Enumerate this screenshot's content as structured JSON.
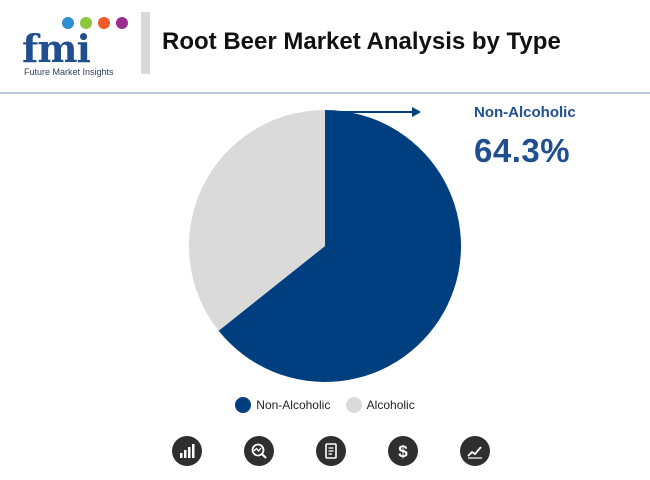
{
  "header": {
    "logo_text": "fmi",
    "logo_subtitle": "Future Market Insights",
    "title": "Root Beer Market Analysis by Type"
  },
  "chart_data": {
    "type": "pie",
    "categories": [
      "Non-Alcoholic",
      "Alcoholic"
    ],
    "values": [
      64.3,
      35.7
    ],
    "colors": [
      "#003f7f",
      "#dadada"
    ],
    "legend_position": "bottom",
    "callout": {
      "category": "Non-Alcoholic",
      "value_label": "64.3%"
    }
  },
  "legend": {
    "items": [
      {
        "label": "Non-Alcoholic",
        "color": "#003f7f"
      },
      {
        "label": "Alcoholic",
        "color": "#dadada"
      }
    ]
  },
  "footer_icons": [
    "bar-chart-icon",
    "analysis-icon",
    "report-icon",
    "dollar-icon",
    "trend-chart-icon"
  ]
}
